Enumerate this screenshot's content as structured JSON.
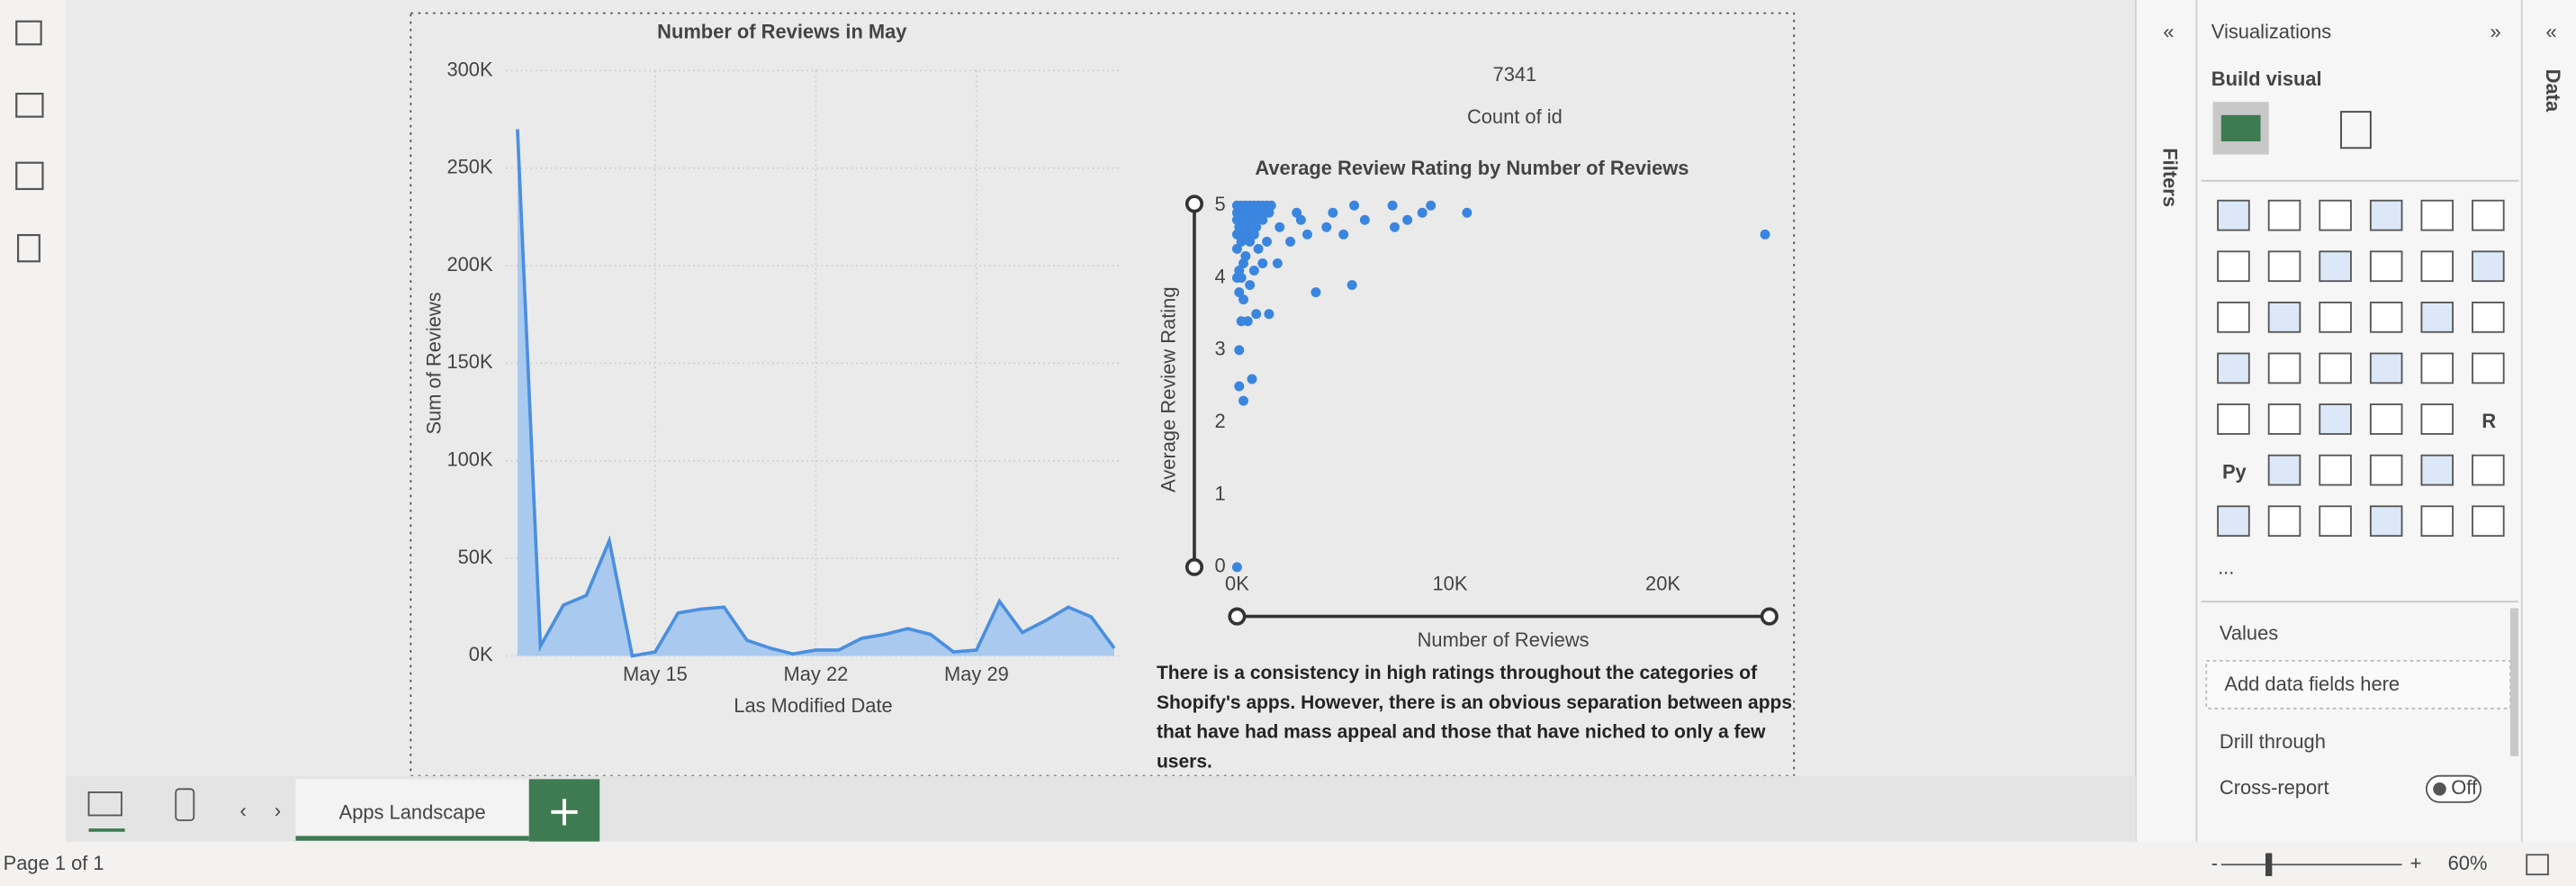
{
  "app": {
    "filters": "Filters",
    "visualizations": "Visualizations",
    "build_visual": "Build visual",
    "values_label": "Values",
    "add_fields": "Add data fields here",
    "drill_through": "Drill through",
    "cross_report": "Cross-report",
    "toggle": "Off",
    "data_pane": "Data",
    "page_tab": "Apps Landscape",
    "status": "Page 1 of 1",
    "zoom": "60%",
    "more": "...",
    "icon_r": "R",
    "icon_py": "Py"
  },
  "card": {
    "value": 7341,
    "label": "Count of id"
  },
  "textbox": "There is a consistency in high ratings throughout the categories of Shopify's apps. However, there is an obvious separation between apps that have had mass appeal and those that have niched to only a few users.",
  "chart_data": [
    {
      "type": "area",
      "title": "Number of Reviews in May",
      "x_label": "Las Modified Date",
      "y_label": "Sum of Reviews",
      "color": "#4a8fe0",
      "fill": "#a9c9ee",
      "x": [
        9,
        10,
        11,
        12,
        13,
        14,
        15,
        16,
        17,
        18,
        19,
        20,
        21,
        22,
        23,
        24,
        25,
        26,
        27,
        28,
        29,
        30,
        31,
        32,
        33,
        34,
        35
      ],
      "values": [
        270000,
        5000,
        26000,
        31000,
        59000,
        0,
        2000,
        22000,
        24000,
        25000,
        8000,
        4000,
        1000,
        3000,
        3000,
        9000,
        11000,
        14000,
        11000,
        2000,
        3000,
        28000,
        12000,
        18000,
        25000,
        20000,
        4000
      ],
      "xlim": [
        8.5,
        35.2
      ],
      "xticks": [
        {
          "value": 15,
          "label": "May 15"
        },
        {
          "value": 22,
          "label": "May 22"
        },
        {
          "value": 29,
          "label": "May 29"
        }
      ],
      "ylim": [
        0,
        300000
      ],
      "yticks": [
        {
          "value": 0,
          "label": "0K"
        },
        {
          "value": 50000,
          "label": "50K"
        },
        {
          "value": 100000,
          "label": "100K"
        },
        {
          "value": 150000,
          "label": "150K"
        },
        {
          "value": 200000,
          "label": "200K"
        },
        {
          "value": 250000,
          "label": "250K"
        },
        {
          "value": 300000,
          "label": "300K"
        }
      ],
      "grid": true
    },
    {
      "type": "scatter",
      "title": "Average Review Rating by Number of Reviews",
      "x_label": "Number of Reviews",
      "y_label": "Average Review Rating",
      "color": "#3a85e0",
      "x": [
        0,
        100,
        300,
        700,
        100,
        200,
        500,
        900,
        1500,
        300,
        100,
        600,
        3700,
        5400,
        200,
        800,
        1200,
        1900,
        400,
        1000,
        1400,
        2500,
        3300,
        4200,
        5000,
        2000,
        3000,
        6000,
        7400,
        8000,
        8700,
        9100,
        10800,
        24800,
        7300,
        5500,
        4500,
        2800,
        0,
        200,
        400,
        600,
        800,
        1000,
        1200,
        1400,
        1600,
        0,
        300,
        600,
        900,
        1200,
        1500,
        0,
        400,
        800,
        1200,
        100,
        500,
        900,
        0,
        400,
        800,
        200,
        600,
        0,
        300,
        100,
        0
      ],
      "values": [
        0,
        2.5,
        2.3,
        2.6,
        3.0,
        3.4,
        3.4,
        3.5,
        3.5,
        3.7,
        3.8,
        3.9,
        3.8,
        3.9,
        4.0,
        4.1,
        4.2,
        4.2,
        4.3,
        4.4,
        4.5,
        4.5,
        4.6,
        4.7,
        4.6,
        4.7,
        4.8,
        4.8,
        4.7,
        4.8,
        4.9,
        5.0,
        4.9,
        4.6,
        5.0,
        5.0,
        4.9,
        4.9,
        5,
        5,
        5,
        5,
        5,
        5,
        5,
        5,
        5,
        4.9,
        4.9,
        4.9,
        4.9,
        4.9,
        4.9,
        4.8,
        4.8,
        4.8,
        4.8,
        4.7,
        4.7,
        4.7,
        4.6,
        4.6,
        4.6,
        4.5,
        4.5,
        4.4,
        4.2,
        4.1,
        4.0
      ],
      "xlim": [
        0,
        25000
      ],
      "xticks": [
        {
          "value": 0,
          "label": "0K"
        },
        {
          "value": 10000,
          "label": "10K"
        },
        {
          "value": 20000,
          "label": "20K"
        }
      ],
      "ylim": [
        0,
        5
      ],
      "yticks": [
        0,
        1,
        2,
        3,
        4,
        5
      ]
    }
  ]
}
